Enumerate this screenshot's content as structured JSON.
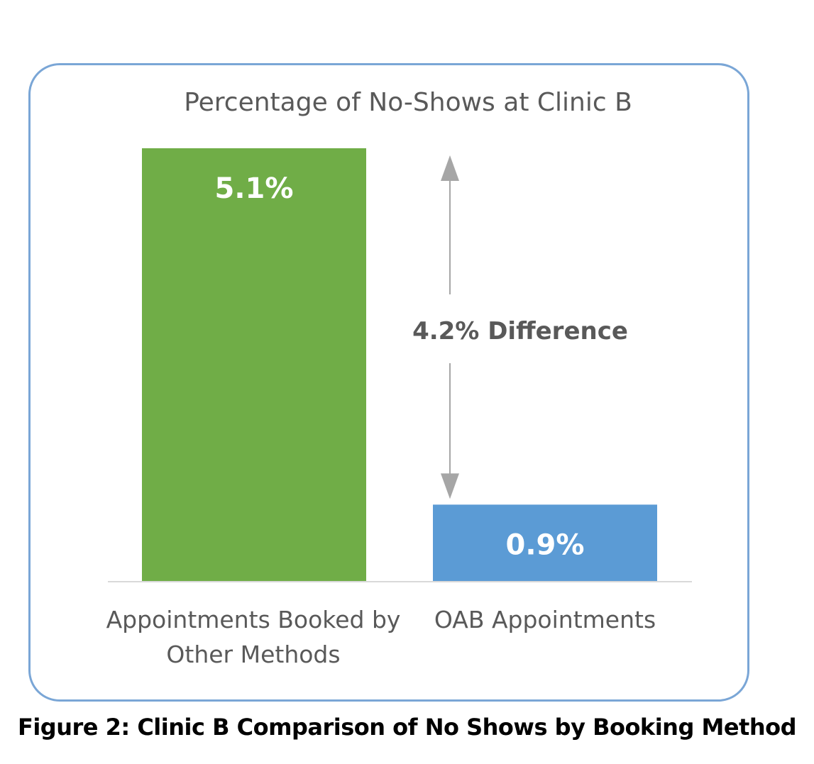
{
  "chart_data": {
    "type": "bar",
    "title": "Percentage of No-Shows at Clinic B",
    "categories": [
      "Appointments Booked by Other Methods",
      "OAB Appointments"
    ],
    "category_label_lines": [
      [
        "Appointments Booked by",
        "Other Methods"
      ],
      [
        "OAB Appointments"
      ]
    ],
    "values": [
      5.1,
      0.9
    ],
    "data_labels": [
      "5.1%",
      "0.9%"
    ],
    "bar_colors": [
      "#70ad47",
      "#5b9bd5"
    ],
    "annotation": "4.2% Difference",
    "ylim": [
      0,
      5.1
    ],
    "grid": false,
    "xlabel": "",
    "ylabel": ""
  },
  "figure_caption": "Figure 2: Clinic B Comparison of No Shows by Booking Method",
  "colors": {
    "frame_border": "#7aa6d6",
    "axis_line": "#d9d9d9",
    "arrow": "#a6a6a6",
    "text_gray": "#595959"
  }
}
